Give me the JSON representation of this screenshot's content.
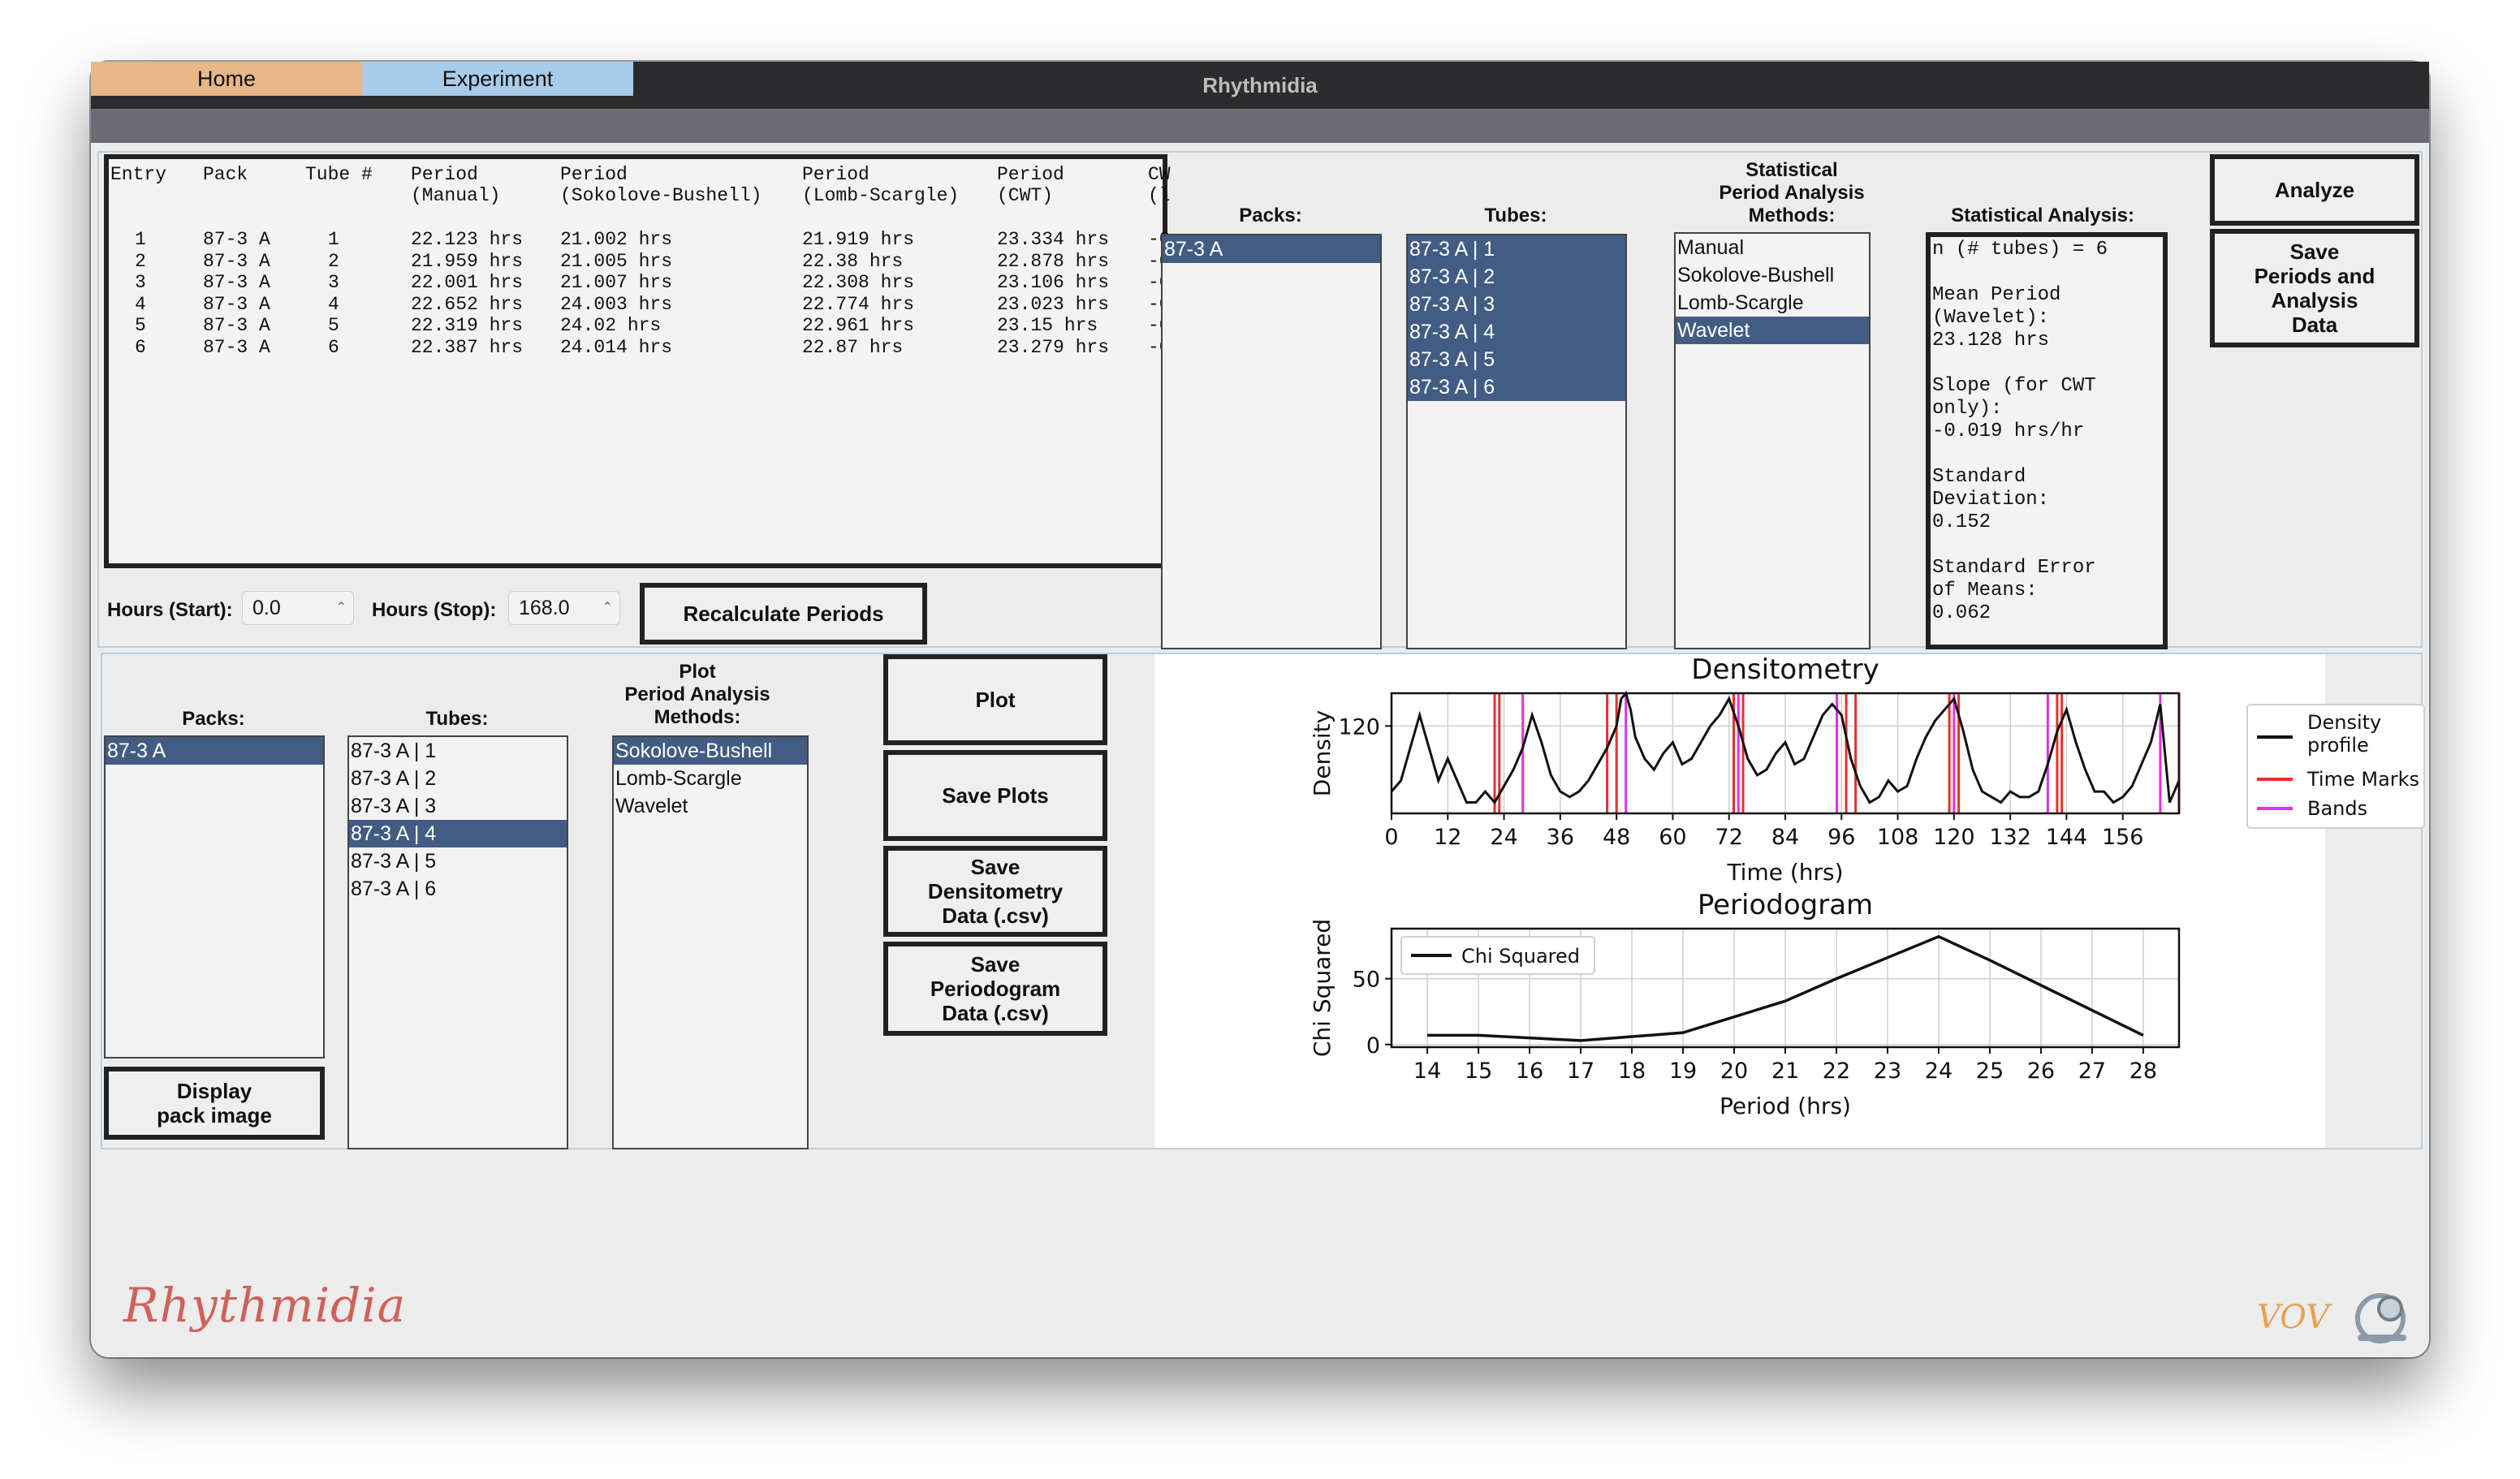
{
  "window": {
    "title": "Rhythmidia"
  },
  "tabs": [
    {
      "label": "Home"
    },
    {
      "label": "Experiment"
    }
  ],
  "top": {
    "table": {
      "columns": [
        {
          "l1": "Entry",
          "l2": ""
        },
        {
          "l1": "Pack",
          "l2": ""
        },
        {
          "l1": "Tube #",
          "l2": ""
        },
        {
          "l1": "Period",
          "l2": "(Manual)"
        },
        {
          "l1": "Period",
          "l2": "(Sokolove-Bushell)"
        },
        {
          "l1": "Period",
          "l2": "(Lomb-Scargle)"
        },
        {
          "l1": "Period",
          "l2": "(CWT)"
        },
        {
          "l1": "CW",
          "l2": "(l"
        }
      ],
      "rows": [
        [
          "1",
          "87-3 A",
          "1",
          "22.123 hrs",
          "21.002 hrs",
          "21.919 hrs",
          "23.334 hrs",
          "-0"
        ],
        [
          "2",
          "87-3 A",
          "2",
          "21.959 hrs",
          "21.005 hrs",
          "22.38 hrs",
          "22.878 hrs",
          "-0"
        ],
        [
          "3",
          "87-3 A",
          "3",
          "22.001 hrs",
          "21.007 hrs",
          "22.308 hrs",
          "23.106 hrs",
          "-0"
        ],
        [
          "4",
          "87-3 A",
          "4",
          "22.652 hrs",
          "24.003 hrs",
          "22.774 hrs",
          "23.023 hrs",
          "-0"
        ],
        [
          "5",
          "87-3 A",
          "5",
          "22.319 hrs",
          "24.02 hrs",
          "22.961 hrs",
          "23.15 hrs",
          "-0"
        ],
        [
          "6",
          "87-3 A",
          "6",
          "22.387 hrs",
          "24.014 hrs",
          "22.87 hrs",
          "23.279 hrs",
          "-0"
        ]
      ]
    },
    "hours_start": {
      "label": "Hours (Start):",
      "value": "0.0"
    },
    "hours_stop": {
      "label": "Hours (Stop):",
      "value": "168.0"
    },
    "recalc_label": "Recalculate Periods",
    "packs": {
      "header": "Packs:",
      "items": [
        "87-3 A"
      ]
    },
    "tubes": {
      "header": "Tubes:",
      "items": [
        "87-3 A | 1",
        "87-3 A | 2",
        "87-3 A | 3",
        "87-3 A | 4",
        "87-3 A | 5",
        "87-3 A | 6"
      ]
    },
    "methods": {
      "header_l1": "Statistical",
      "header_l2": "Period Analysis",
      "header_l3": "Methods:",
      "items": [
        "Manual",
        "Sokolove-Bushell",
        "Lomb-Scargle",
        "Wavelet"
      ]
    },
    "stats": {
      "header": "Statistical Analysis:",
      "lines": [
        "n (# tubes) = 6",
        "",
        "Mean Period",
        "(Wavelet):",
        "23.128 hrs",
        "",
        "Slope (for CWT",
        "only):",
        "-0.019 hrs/hr",
        "",
        "Standard",
        "Deviation:",
        "0.152",
        "",
        "Standard Error",
        "of Means:",
        "0.062"
      ]
    },
    "analyze_label": "Analyze",
    "save_analysis": {
      "l1": "Save",
      "l2": "Periods and",
      "l3": "Analysis",
      "l4": "Data"
    }
  },
  "bottom": {
    "packs": {
      "header": "Packs:",
      "items": [
        "87-3 A"
      ]
    },
    "display_pack": {
      "l1": "Display",
      "l2": "pack image"
    },
    "tubes": {
      "header": "Tubes:",
      "items": [
        "87-3 A | 1",
        "87-3 A | 2",
        "87-3 A | 3",
        "87-3 A | 4",
        "87-3 A | 5",
        "87-3 A | 6"
      ]
    },
    "plot_methods": {
      "header_l1": "Plot",
      "header_l2": "Period Analysis",
      "header_l3": "Methods:",
      "items": [
        "Sokolove-Bushell",
        "Lomb-Scargle",
        "Wavelet"
      ]
    },
    "plot_label": "Plot",
    "save_plots_label": "Save Plots",
    "save_dens": {
      "l1": "Save",
      "l2": "Densitometry",
      "l3": "Data (.csv)"
    },
    "save_period": {
      "l1": "Save",
      "l2": "Periodogram",
      "l3": "Data (.csv)"
    }
  },
  "footer": {
    "logo": "Rhythmidia",
    "right_logo": "VOV"
  },
  "colors": {
    "selection": "#425c84",
    "home_tab": "#e7b787",
    "experiment_tab": "#a9cbea",
    "time_marks": "#e8302a",
    "bands": "#e331e3"
  },
  "chart_data": [
    {
      "type": "line",
      "title": "Densitometry",
      "xlabel": "Time (hrs)",
      "ylabel": "Density",
      "x_ticks": [
        "0",
        "12",
        "24",
        "36",
        "48",
        "60",
        "72",
        "84",
        "96",
        "108",
        "120",
        "132",
        "144",
        "156"
      ],
      "y_ticks": [
        "120"
      ],
      "xlim": [
        0,
        168
      ],
      "ylim": [
        104,
        126
      ],
      "grid": true,
      "legend": "right",
      "series": [
        {
          "name": "Density profile",
          "x": [
            0,
            2,
            4,
            6,
            8,
            10,
            12,
            14,
            16,
            18,
            20,
            22,
            24,
            26,
            28,
            30,
            32,
            34,
            36,
            38,
            40,
            42,
            44,
            46,
            48,
            49,
            50,
            51,
            52,
            54,
            56,
            58,
            60,
            62,
            64,
            66,
            68,
            70,
            72,
            74,
            76,
            78,
            80,
            82,
            84,
            86,
            88,
            90,
            92,
            94,
            96,
            98,
            100,
            102,
            104,
            106,
            108,
            110,
            112,
            114,
            116,
            118,
            120,
            122,
            124,
            126,
            128,
            130,
            132,
            134,
            136,
            138,
            140,
            142,
            144,
            146,
            148,
            150,
            152,
            154,
            156,
            158,
            160,
            162,
            164,
            166,
            168
          ],
          "y": [
            108,
            110,
            116,
            122,
            116,
            110,
            114,
            110,
            106,
            106,
            108,
            106,
            109,
            112,
            116,
            122,
            117,
            111,
            108,
            107,
            108,
            110,
            113,
            116,
            120,
            125,
            126,
            123,
            118,
            114,
            112,
            115,
            117,
            113,
            114,
            117,
            120,
            122,
            125,
            120,
            114,
            111,
            112,
            115,
            117,
            113,
            114,
            118,
            122,
            124,
            122,
            114,
            109,
            106,
            107,
            110,
            108,
            109,
            114,
            118,
            121,
            123,
            125,
            119,
            112,
            108,
            107,
            106,
            108,
            107,
            107,
            108,
            113,
            119,
            123,
            117,
            112,
            108,
            108,
            106,
            107,
            109,
            113,
            117,
            124,
            106,
            110
          ]
        }
      ],
      "time_marks": [
        22,
        23,
        46,
        48,
        73,
        75,
        97,
        99,
        119,
        121,
        142,
        143,
        168
      ],
      "bands": [
        28,
        50,
        74,
        95,
        120,
        140,
        164
      ]
    },
    {
      "type": "line",
      "title": "Periodogram",
      "xlabel": "Period (hrs)",
      "ylabel": "Chi Squared",
      "x_ticks": [
        "14",
        "15",
        "16",
        "17",
        "18",
        "19",
        "20",
        "21",
        "22",
        "23",
        "24",
        "25",
        "26",
        "27",
        "28"
      ],
      "y_ticks": [
        "0",
        "50"
      ],
      "xlim": [
        13.3,
        28.7
      ],
      "ylim": [
        -2,
        88
      ],
      "grid": true,
      "legend": "top-left",
      "series": [
        {
          "name": "Chi Squared",
          "x": [
            14,
            15,
            16,
            17,
            18,
            19,
            20,
            21,
            22,
            23,
            24,
            25,
            26,
            27,
            28
          ],
          "y": [
            7,
            7,
            5,
            3,
            6,
            9,
            21,
            33,
            50,
            66,
            82,
            64,
            45,
            26,
            7
          ]
        }
      ]
    }
  ]
}
